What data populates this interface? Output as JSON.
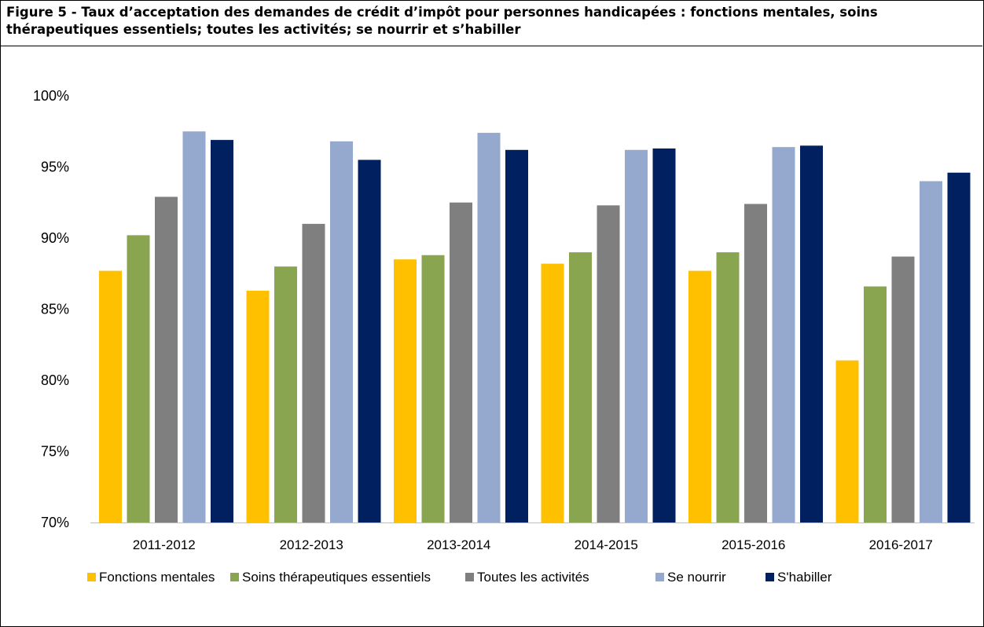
{
  "figure": {
    "title": "Figure 5 - Taux d’acceptation des demandes de crédit d’impôt pour personnes handicapées : fonctions mentales, soins thérapeutiques essentiels; toutes les activités; se nourrir et s’habiller"
  },
  "chart_data": {
    "type": "bar",
    "title": "Figure 5 - Taux d’acceptation des demandes de crédit d’impôt pour personnes handicapées : fonctions mentales, soins thérapeutiques essentiels; toutes les activités; se nourrir et s’habiller",
    "xlabel": "",
    "ylabel": "",
    "categories": [
      "2011-2012",
      "2012-2013",
      "2013-2014",
      "2014-2015",
      "2015-2016",
      "2016-2017"
    ],
    "series": [
      {
        "name": "Fonctions mentales",
        "color": "#FFC000",
        "values": [
          87.7,
          86.3,
          88.5,
          88.2,
          87.7,
          81.4
        ]
      },
      {
        "name": "Soins thérapeutiques essentiels",
        "color": "#8AA550",
        "values": [
          90.2,
          88.0,
          88.8,
          89.0,
          89.0,
          86.6
        ]
      },
      {
        "name": "Toutes les activités",
        "color": "#7F7F7F",
        "values": [
          92.9,
          91.0,
          92.5,
          92.3,
          92.4,
          88.7
        ]
      },
      {
        "name": "Se nourrir",
        "color": "#95A9CF",
        "values": [
          97.5,
          96.8,
          97.4,
          96.2,
          96.4,
          94.0
        ]
      },
      {
        "name": "S'habiller",
        "color": "#002060",
        "values": [
          96.9,
          95.5,
          96.2,
          96.3,
          96.5,
          94.6
        ]
      }
    ],
    "ylim": [
      70,
      100
    ],
    "yticks": [
      70,
      75,
      80,
      85,
      90,
      95,
      100
    ],
    "ytick_labels": [
      "70%",
      "75%",
      "80%",
      "85%",
      "90%",
      "95%",
      "100%"
    ],
    "grid": false,
    "legend": "bottom"
  }
}
